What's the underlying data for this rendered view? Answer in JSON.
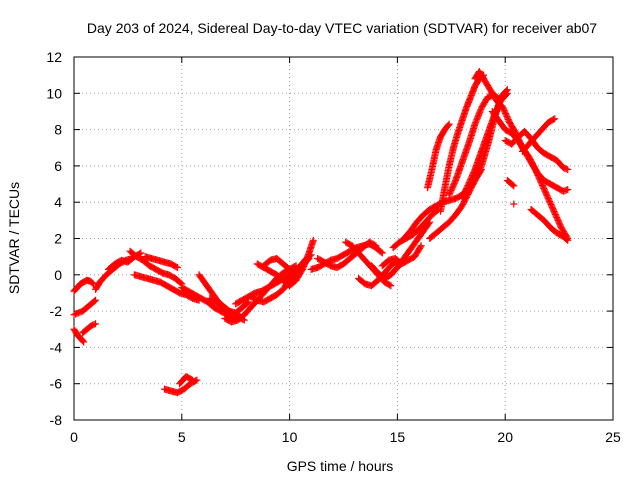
{
  "chart_data": {
    "type": "scatter",
    "title": "Day 203 of 2024, Sidereal Day-to-day VTEC variation (SDTVAR) for receiver ab07",
    "xlabel": "GPS time / hours",
    "ylabel": "SDTVAR / TECUs",
    "xlim": [
      0,
      25
    ],
    "ylim": [
      -8,
      12
    ],
    "xticks": [
      0,
      5,
      10,
      15,
      20,
      25
    ],
    "yticks": [
      -8,
      -6,
      -4,
      -2,
      0,
      2,
      4,
      6,
      8,
      10,
      12
    ],
    "grid": true,
    "marker": "+",
    "colors": {
      "marker": "#ff0000",
      "grid": "#a0a0a0",
      "axes": "#000000"
    },
    "series": [
      {
        "name": "seg-01",
        "x": [
          0.0,
          0.15,
          0.3,
          0.45,
          0.6,
          0.75,
          0.9
        ],
        "y": [
          -0.9,
          -0.7,
          -0.5,
          -0.4,
          -0.3,
          -0.35,
          -0.5
        ]
      },
      {
        "name": "seg-02",
        "x": [
          0.0,
          0.2,
          0.4,
          0.6,
          0.8,
          1.0
        ],
        "y": [
          -2.2,
          -2.1,
          -2.0,
          -1.8,
          -1.6,
          -1.4
        ]
      },
      {
        "name": "seg-03",
        "x": [
          0.0,
          0.15,
          0.3,
          0.45
        ],
        "y": [
          -3.0,
          -3.3,
          -3.5,
          -3.7
        ]
      },
      {
        "name": "seg-04",
        "x": [
          0.4,
          0.6,
          0.8,
          1.0
        ],
        "y": [
          -3.2,
          -3.0,
          -2.8,
          -2.7
        ]
      },
      {
        "name": "seg-05",
        "x": [
          1.0,
          1.2,
          1.5,
          1.8,
          2.1,
          2.4,
          2.7
        ],
        "y": [
          -0.8,
          -0.4,
          0.0,
          0.3,
          0.6,
          0.8,
          0.9
        ]
      },
      {
        "name": "seg-06",
        "x": [
          1.6,
          1.9,
          2.2,
          2.5,
          2.8,
          3.1
        ],
        "y": [
          0.3,
          0.6,
          0.8,
          0.7,
          1.0,
          1.2
        ]
      },
      {
        "name": "seg-07",
        "x": [
          2.6,
          2.9,
          3.2,
          3.5,
          3.8,
          4.1,
          4.4,
          4.7,
          5.0
        ],
        "y": [
          1.3,
          1.0,
          0.8,
          0.5,
          0.3,
          0.1,
          0.0,
          -0.2,
          -0.5
        ]
      },
      {
        "name": "seg-08",
        "x": [
          2.8,
          3.1,
          3.4,
          3.7,
          4.0,
          4.3,
          4.6,
          4.9,
          5.2,
          5.5,
          5.8
        ],
        "y": [
          0.0,
          -0.1,
          -0.2,
          -0.3,
          -0.4,
          -0.6,
          -0.8,
          -1.0,
          -1.1,
          -1.3,
          -1.4
        ]
      },
      {
        "name": "seg-09",
        "x": [
          3.3,
          3.6,
          3.9,
          4.2,
          4.5,
          4.8
        ],
        "y": [
          1.0,
          0.9,
          0.8,
          0.7,
          0.6,
          0.4
        ]
      },
      {
        "name": "seg-10",
        "x": [
          4.2,
          4.5,
          4.8,
          5.1,
          5.4,
          5.7
        ],
        "y": [
          -6.3,
          -6.4,
          -6.5,
          -6.3,
          -6.0,
          -5.8
        ]
      },
      {
        "name": "seg-11",
        "x": [
          4.9,
          5.2,
          5.5
        ],
        "y": [
          -6.0,
          -5.6,
          -5.8
        ]
      },
      {
        "name": "seg-12",
        "x": [
          5.0,
          5.3,
          5.6,
          5.9,
          6.2,
          6.5,
          6.8,
          7.1,
          7.4,
          7.7
        ],
        "y": [
          -0.7,
          -0.9,
          -1.1,
          -1.3,
          -1.5,
          -1.8,
          -2.0,
          -2.2,
          -2.4,
          -2.3
        ]
      },
      {
        "name": "seg-13",
        "x": [
          5.8,
          6.1,
          6.4,
          6.7,
          7.0,
          7.3,
          7.6,
          7.9
        ],
        "y": [
          0.0,
          -0.5,
          -1.0,
          -1.5,
          -1.8,
          -2.1,
          -2.3,
          -2.5
        ]
      },
      {
        "name": "seg-14",
        "x": [
          6.3,
          6.6,
          6.9,
          7.2,
          7.5,
          7.8,
          8.1
        ],
        "y": [
          -1.3,
          -1.5,
          -1.8,
          -2.0,
          -2.1,
          -1.8,
          -1.5
        ]
      },
      {
        "name": "seg-15",
        "x": [
          7.0,
          7.3,
          7.6,
          7.9,
          8.2,
          8.5,
          8.8,
          9.1,
          9.4,
          9.7,
          10.0
        ],
        "y": [
          -2.4,
          -2.6,
          -2.5,
          -2.2,
          -1.8,
          -1.4,
          -1.0,
          -0.6,
          -0.2,
          0.1,
          0.3
        ]
      },
      {
        "name": "seg-16",
        "x": [
          7.5,
          7.8,
          8.1,
          8.4,
          8.7,
          9.0,
          9.3,
          9.6,
          9.9,
          10.2,
          10.5
        ],
        "y": [
          -1.6,
          -1.4,
          -1.2,
          -1.0,
          -0.9,
          -0.7,
          -0.5,
          -0.3,
          -0.1,
          0.2,
          0.5
        ]
      },
      {
        "name": "seg-17",
        "x": [
          8.2,
          8.5,
          8.8,
          9.1,
          9.4,
          9.7,
          10.0,
          10.3,
          10.6,
          10.9
        ],
        "y": [
          -1.2,
          -1.4,
          -1.5,
          -1.3,
          -1.1,
          -0.8,
          -0.4,
          0.0,
          0.5,
          0.9
        ]
      },
      {
        "name": "seg-18",
        "x": [
          8.5,
          8.8,
          9.1,
          9.4,
          9.7,
          10.0,
          10.3,
          10.6,
          10.9,
          11.1
        ],
        "y": [
          0.6,
          0.4,
          0.2,
          0.0,
          -0.3,
          -0.6,
          -0.3,
          0.3,
          1.2,
          1.9
        ]
      },
      {
        "name": "seg-19",
        "x": [
          8.8,
          9.1,
          9.4,
          9.7,
          10.0,
          10.3
        ],
        "y": [
          0.5,
          0.8,
          0.9,
          0.6,
          0.3,
          0.5
        ]
      },
      {
        "name": "seg-20",
        "x": [
          9.8,
          10.1,
          10.4,
          10.7,
          11.0
        ],
        "y": [
          -0.6,
          -0.2,
          0.3,
          0.8,
          1.1
        ]
      },
      {
        "name": "seg-21",
        "x": [
          11.0,
          11.3,
          11.6,
          11.9,
          12.2,
          12.5,
          12.8,
          13.1,
          13.4,
          13.7,
          14.0,
          14.3
        ],
        "y": [
          0.3,
          0.4,
          0.6,
          0.8,
          0.9,
          1.1,
          1.3,
          1.5,
          1.6,
          1.7,
          1.5,
          1.2
        ]
      },
      {
        "name": "seg-22",
        "x": [
          11.3,
          11.6,
          11.9,
          12.2,
          12.5,
          12.8,
          13.1,
          13.4,
          13.7,
          14.0
        ],
        "y": [
          0.9,
          0.7,
          0.5,
          0.4,
          0.6,
          0.9,
          1.2,
          1.5,
          1.8,
          1.6
        ]
      },
      {
        "name": "seg-23",
        "x": [
          12.6,
          12.9,
          13.2,
          13.5,
          13.8,
          14.1,
          14.4,
          14.7
        ],
        "y": [
          1.8,
          1.6,
          1.2,
          0.8,
          0.4,
          0.0,
          -0.4,
          -0.6
        ]
      },
      {
        "name": "seg-24",
        "x": [
          13.2,
          13.5,
          13.8,
          14.1,
          14.4,
          14.7,
          15.0
        ],
        "y": [
          -0.2,
          -0.5,
          -0.6,
          -0.3,
          0.1,
          0.5,
          0.8
        ]
      },
      {
        "name": "seg-25",
        "x": [
          13.8,
          14.1,
          14.4,
          14.7,
          15.0,
          15.3,
          15.6,
          15.9,
          16.2,
          16.5
        ],
        "y": [
          0.5,
          0.1,
          -0.2,
          0.0,
          0.4,
          0.9,
          1.4,
          1.9,
          2.4,
          2.9
        ]
      },
      {
        "name": "seg-26",
        "x": [
          14.3,
          14.6,
          14.9,
          15.2,
          15.5,
          15.8,
          16.1
        ],
        "y": [
          0.5,
          0.8,
          0.9,
          0.6,
          0.8,
          1.0,
          1.6
        ]
      },
      {
        "name": "seg-27",
        "x": [
          14.8,
          15.1,
          15.4,
          15.7,
          16.0,
          16.3,
          16.6,
          16.9
        ],
        "y": [
          1.5,
          1.8,
          2.0,
          2.2,
          2.5,
          2.9,
          3.3,
          3.6
        ]
      },
      {
        "name": "seg-28",
        "x": [
          15.3,
          15.6,
          15.9,
          16.2,
          16.5,
          16.8,
          17.1,
          17.4,
          17.7,
          18.0,
          18.3,
          18.6,
          18.9,
          19.2,
          19.5,
          19.8,
          20.1
        ],
        "y": [
          2.0,
          2.4,
          2.9,
          3.3,
          3.6,
          3.8,
          4.0,
          4.1,
          4.2,
          4.4,
          4.8,
          5.3,
          6.0,
          7.2,
          8.6,
          9.8,
          10.2
        ]
      },
      {
        "name": "seg-29",
        "x": [
          16.5,
          16.8,
          17.1,
          17.4,
          17.7,
          18.0,
          18.3,
          18.6,
          18.9
        ],
        "y": [
          2.0,
          2.3,
          2.6,
          2.9,
          3.3,
          3.8,
          4.5,
          5.2,
          5.8
        ]
      },
      {
        "name": "seg-30",
        "x": [
          16.4,
          16.6,
          16.8,
          17.0,
          17.2,
          17.4
        ],
        "y": [
          4.8,
          5.8,
          6.9,
          7.6,
          8.0,
          8.3
        ]
      },
      {
        "name": "seg-31",
        "x": [
          17.0,
          17.2,
          17.4,
          17.6,
          17.8,
          18.0,
          18.2,
          18.4,
          18.6,
          18.8,
          19.0
        ],
        "y": [
          3.5,
          4.8,
          6.0,
          7.0,
          7.8,
          8.5,
          9.2,
          9.8,
          10.4,
          10.8,
          11.0
        ]
      },
      {
        "name": "seg-32",
        "x": [
          17.4,
          17.7,
          18.0,
          18.3,
          18.6,
          18.9,
          19.2,
          19.5,
          19.8
        ],
        "y": [
          4.4,
          5.2,
          6.2,
          7.2,
          8.3,
          9.2,
          9.8,
          9.9,
          9.6
        ]
      },
      {
        "name": "seg-33",
        "x": [
          18.0,
          18.3,
          18.6,
          18.9,
          19.2,
          19.5,
          19.8,
          20.1
        ],
        "y": [
          4.2,
          5.0,
          5.8,
          6.8,
          7.8,
          8.8,
          9.6,
          10.0
        ]
      },
      {
        "name": "seg-34",
        "x": [
          18.6,
          18.8,
          19.0,
          19.3,
          19.6,
          19.9,
          20.2,
          20.5,
          20.8,
          21.1,
          21.4,
          21.7,
          22.0,
          22.3,
          22.6,
          22.9
        ],
        "y": [
          10.8,
          11.2,
          10.8,
          10.2,
          9.6,
          9.2,
          8.4,
          7.8,
          7.0,
          6.5,
          5.8,
          5.0,
          4.2,
          3.4,
          2.6,
          2.0
        ]
      },
      {
        "name": "seg-35",
        "x": [
          19.4,
          19.7,
          20.0,
          20.3,
          20.6,
          20.9,
          21.2,
          21.5,
          21.8,
          22.1,
          22.4,
          22.7,
          22.9
        ],
        "y": [
          9.0,
          8.5,
          8.0,
          7.8,
          7.4,
          6.8,
          6.2,
          5.6,
          5.2,
          5.0,
          4.8,
          4.6,
          4.7
        ]
      },
      {
        "name": "seg-36",
        "x": [
          20.0,
          20.3,
          20.6,
          20.9,
          21.2,
          21.5,
          21.8,
          22.1,
          22.4,
          22.7,
          22.9
        ],
        "y": [
          7.4,
          7.2,
          7.6,
          7.9,
          7.5,
          7.0,
          6.7,
          6.5,
          6.3,
          5.9,
          5.8
        ]
      },
      {
        "name": "seg-37",
        "x": [
          20.1,
          20.3,
          20.4
        ],
        "y": [
          5.2,
          5.0,
          4.9
        ]
      },
      {
        "name": "seg-38",
        "x": [
          20.4
        ],
        "y": [
          3.9
        ]
      },
      {
        "name": "seg-39",
        "x": [
          20.8,
          21.1,
          21.4,
          21.7,
          22.0,
          22.3
        ],
        "y": [
          6.8,
          7.2,
          7.6,
          8.0,
          8.4,
          8.6
        ]
      },
      {
        "name": "seg-40",
        "x": [
          21.2,
          21.5,
          21.8,
          22.1,
          22.4,
          22.7,
          22.9
        ],
        "y": [
          3.6,
          3.3,
          3.0,
          2.6,
          2.3,
          2.1,
          1.9
        ]
      }
    ]
  }
}
